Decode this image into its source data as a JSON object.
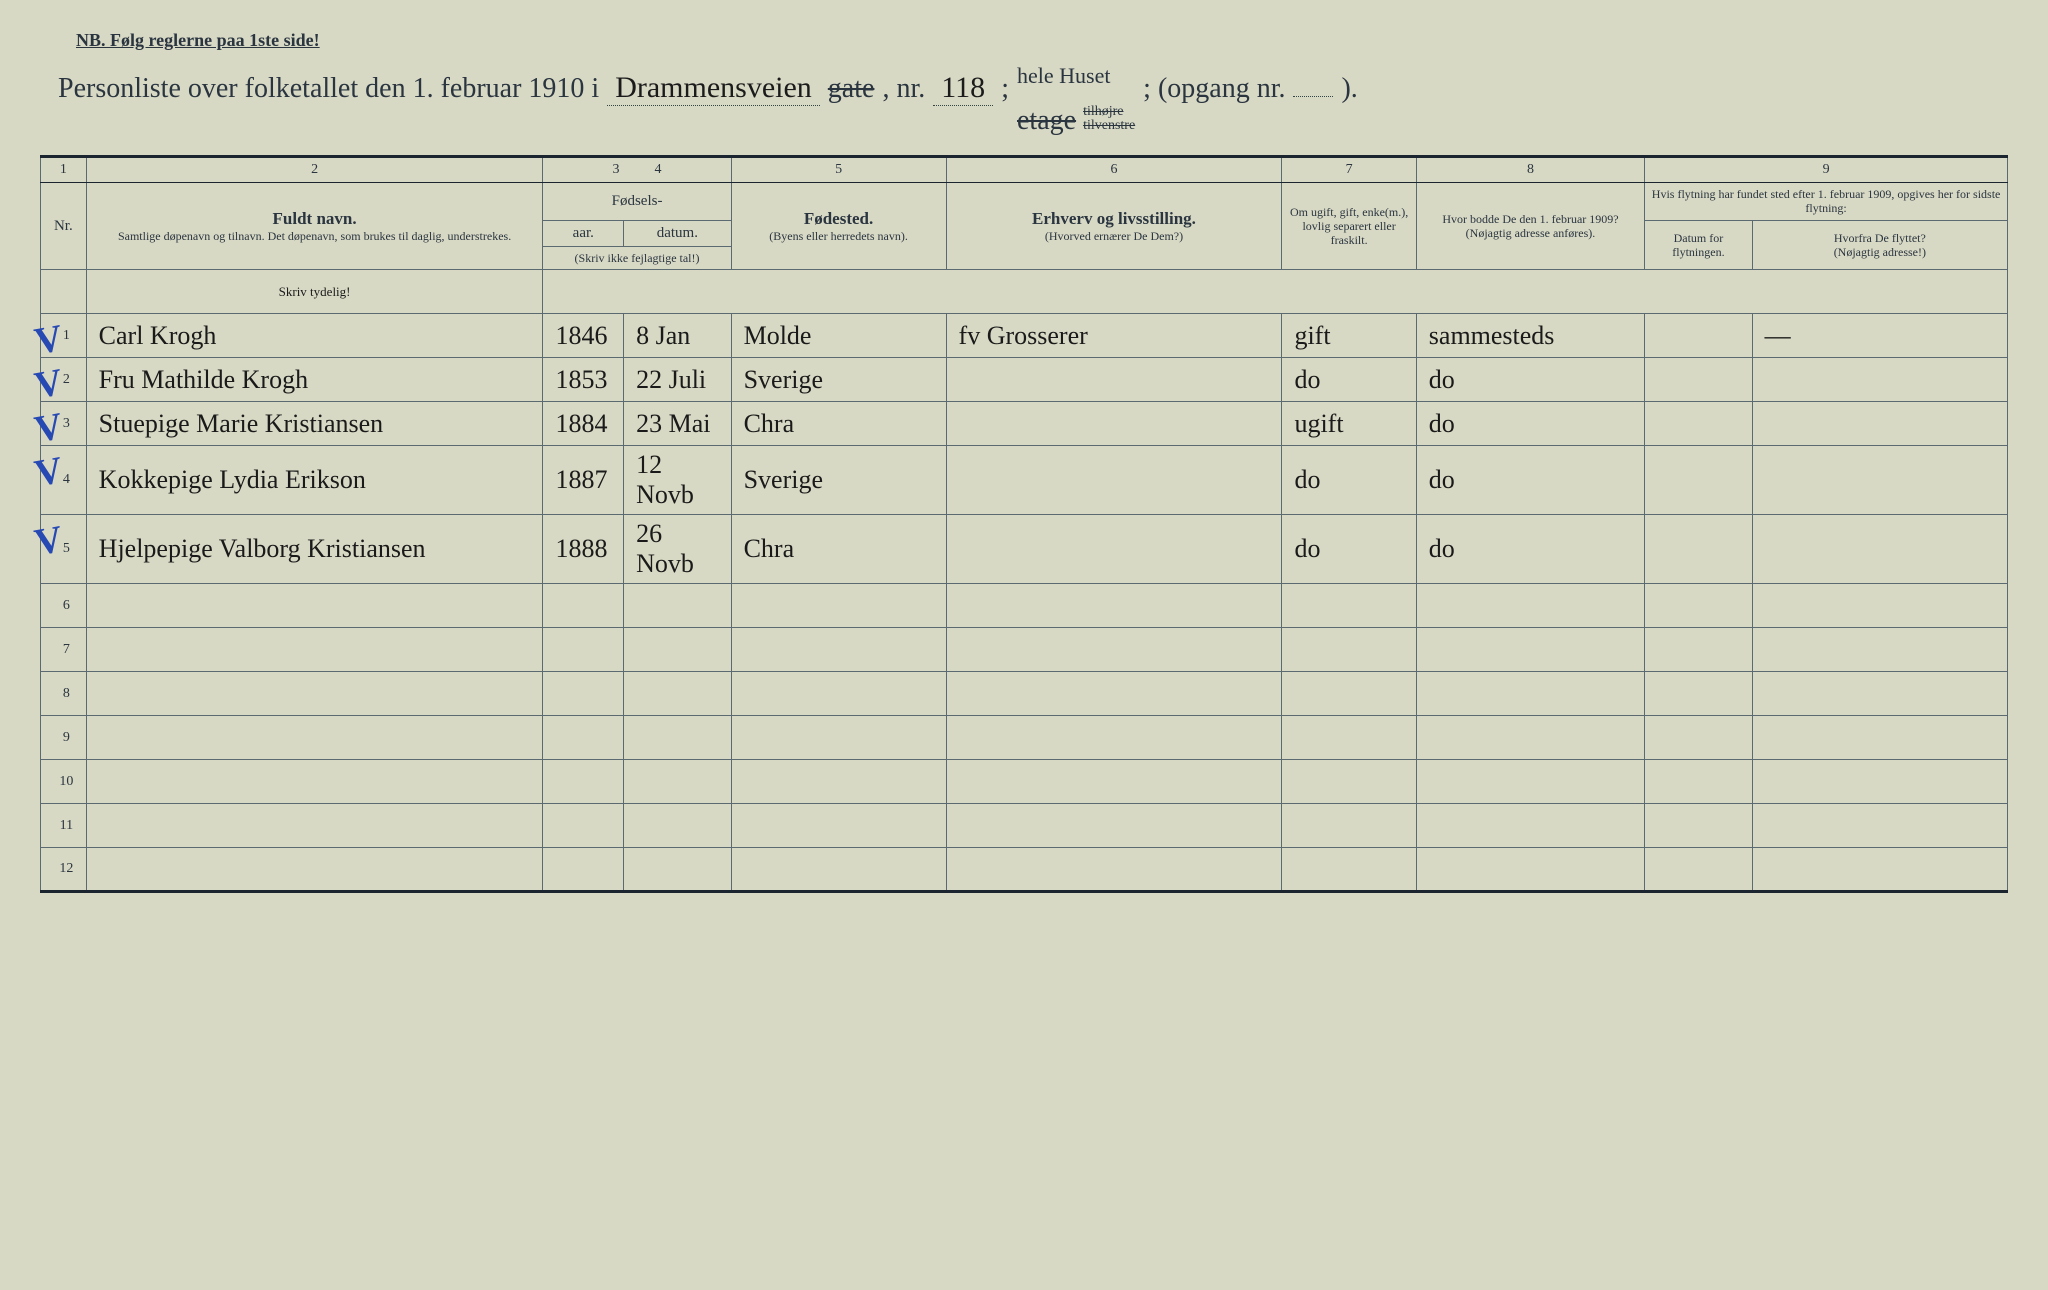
{
  "colors": {
    "paper": "#d8d9c4",
    "ink_print": "#2a3540",
    "ink_handwritten": "#1a1a1a",
    "blue_pencil": "#2749b3",
    "border": "#5a6a70"
  },
  "header": {
    "notice": "NB.  Følg reglerne paa 1ste side!",
    "title_prefix": "Personliste over folketallet den 1. februar 1910 i",
    "street_handwritten": "Drammensveien",
    "street_struck": "gate",
    "nr_label": ", nr.",
    "nr_value": "118",
    "separator": ";",
    "etage_struck": "etage",
    "tilhoire_struck": "tilhøjre",
    "tilvenstre_struck": "tilvenstre",
    "hele_huset": "hele Huset",
    "opgang_label": "; (opgang nr.",
    "opgang_suffix": ")."
  },
  "column_numbers": [
    "1",
    "2",
    "3",
    "4",
    "5",
    "6",
    "7",
    "8",
    "9"
  ],
  "columns": {
    "nr": "Nr.",
    "name_main": "Fuldt navn.",
    "name_sub": "Samtlige døpenavn og tilnavn. Det døpenavn, som brukes til daglig, understrekes.",
    "fodsels": "Fødsels-",
    "year": "aar.",
    "date": "datum.",
    "year_hint": "(Skriv ikke fejlagtige tal!)",
    "birthplace_main": "Fødested.",
    "birthplace_sub": "(Byens eller herredets navn).",
    "occupation_main": "Erhverv og livsstilling.",
    "occupation_sub": "(Hvorved ernærer De Dem?)",
    "marital": "Om ugift, gift, enke(m.), lovlig separert eller fraskilt.",
    "residence_main": "Hvor bodde De den 1. februar 1909?",
    "residence_sub": "(Nøjagtig adresse anføres).",
    "move_title": "Hvis flytning har fundet sted efter 1. februar 1909, opgives her for sidste flytning:",
    "move_date": "Datum for flytningen.",
    "move_from_main": "Hvorfra De flyttet?",
    "move_from_sub": "(Nøjagtig adresse!)",
    "write_clearly": "Skriv tydelig!"
  },
  "rows": [
    {
      "nr": "1",
      "check": true,
      "name": "Carl Krogh",
      "year": "1846",
      "date": "8 Jan",
      "birthplace": "Molde",
      "occupation": "fv Grosserer",
      "marital": "gift",
      "residence": "sammesteds",
      "movedate": "",
      "movefrom": "—"
    },
    {
      "nr": "2",
      "check": true,
      "name": "Fru Mathilde Krogh",
      "year": "1853",
      "date": "22 Juli",
      "birthplace": "Sverige",
      "occupation": "",
      "marital": "do",
      "residence": "do",
      "movedate": "",
      "movefrom": ""
    },
    {
      "nr": "3",
      "check": true,
      "name": "Stuepige Marie Kristiansen",
      "year": "1884",
      "date": "23 Mai",
      "birthplace": "Chra",
      "occupation": "",
      "marital": "ugift",
      "residence": "do",
      "movedate": "",
      "movefrom": ""
    },
    {
      "nr": "4",
      "check": true,
      "name": "Kokkepige Lydia Erikson",
      "year": "1887",
      "date": "12 Novb",
      "birthplace": "Sverige",
      "occupation": "",
      "marital": "do",
      "residence": "do",
      "movedate": "",
      "movefrom": ""
    },
    {
      "nr": "5",
      "check": true,
      "name": "Hjelpepige Valborg Kristiansen",
      "year": "1888",
      "date": "26 Novb",
      "birthplace": "Chra",
      "occupation": "",
      "marital": "do",
      "residence": "do",
      "movedate": "",
      "movefrom": ""
    }
  ],
  "empty_rows": [
    "6",
    "7",
    "8",
    "9",
    "10",
    "11",
    "12"
  ]
}
